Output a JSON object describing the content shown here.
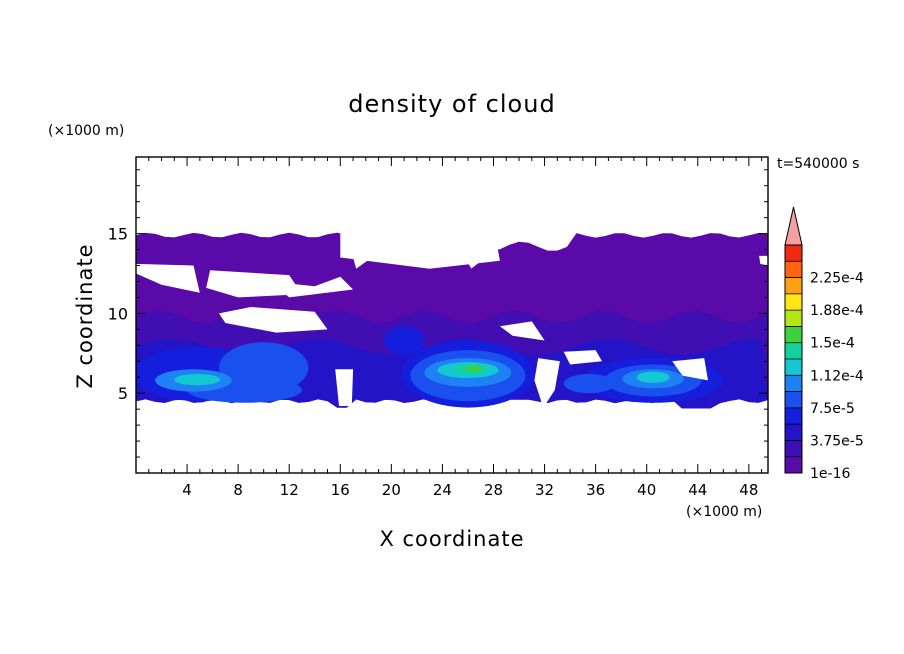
{
  "chart_data": {
    "type": "heatmap",
    "title": "density of cloud",
    "xlabel": "X coordinate",
    "ylabel": "Z coordinate",
    "x_unit": "(×1000 m)",
    "y_unit": "(×1000 m)",
    "time_label": "t=540000 s",
    "xlim": [
      0,
      49.5
    ],
    "ylim": [
      0,
      19.8
    ],
    "x_ticks": [
      4,
      8,
      12,
      16,
      20,
      24,
      28,
      32,
      36,
      40,
      44,
      48
    ],
    "y_ticks": [
      5,
      10,
      15
    ],
    "colorbar": {
      "labels": [
        "1e-16",
        "3.75e-5",
        "7.5e-5",
        "1.12e-4",
        "1.5e-4",
        "1.88e-4",
        "2.25e-4"
      ],
      "levels": [
        1e-16,
        1.875e-05,
        3.75e-05,
        5.625e-05,
        7.5e-05,
        9.375e-05,
        0.0001125,
        0.00013125,
        0.00015,
        0.00016875,
        0.0001875,
        0.00020625,
        0.000225,
        0.00024375
      ],
      "colors": [
        "#5a0aa8",
        "#3c0fb4",
        "#2414c8",
        "#141edc",
        "#1a50ee",
        "#1e82f5",
        "#14c8d2",
        "#14d29b",
        "#3cd23c",
        "#b4e614",
        "#ffe614",
        "#ffa014",
        "#ff6414",
        "#f02814"
      ],
      "over_color": "#f4a0a0"
    },
    "fields": {
      "upper_layer": {
        "z_range": [
          10,
          15
        ],
        "value": 1e-16,
        "color": "#5a0aa8"
      },
      "lower_layer": {
        "z_range": [
          4.5,
          10
        ],
        "color": "#3c0fb4"
      },
      "maxima": [
        {
          "x": 5,
          "z": 5.8,
          "value": 0.00011
        },
        {
          "x": 26,
          "z": 6.5,
          "value": 0.00016
        },
        {
          "x": 40.5,
          "z": 6.0,
          "value": 0.00012
        }
      ]
    }
  }
}
